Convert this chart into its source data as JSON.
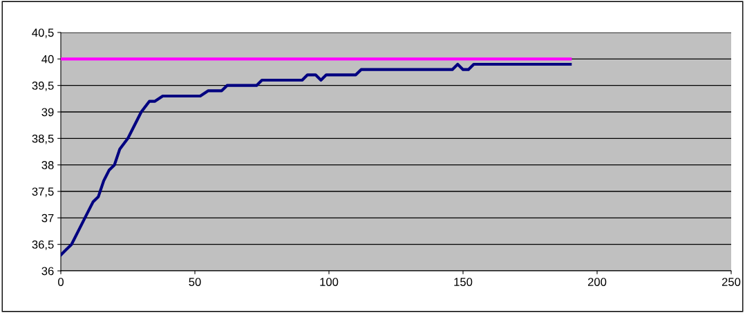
{
  "chart_data": {
    "type": "line",
    "xlim": [
      0,
      250
    ],
    "xticks": [
      0,
      50,
      100,
      150,
      200,
      250
    ],
    "ylim": [
      36,
      40.5
    ],
    "yticks": [
      {
        "value": 36,
        "label": "36"
      },
      {
        "value": 36.5,
        "label": "36,5"
      },
      {
        "value": 37,
        "label": "37"
      },
      {
        "value": 37.5,
        "label": "37,5"
      },
      {
        "value": 38,
        "label": "38"
      },
      {
        "value": 38.5,
        "label": "38,5"
      },
      {
        "value": 39,
        "label": "39"
      },
      {
        "value": 39.5,
        "label": "39,5"
      },
      {
        "value": 40,
        "label": "40"
      },
      {
        "value": 40.5,
        "label": "40,5"
      }
    ],
    "grid": "y",
    "legend": false,
    "marker": "none",
    "line_style": "solid",
    "series": [
      {
        "color": "#000080",
        "x": [
          0,
          2,
          4,
          5,
          7,
          10,
          12,
          14,
          16,
          18,
          20,
          22,
          25,
          27,
          30,
          33,
          35,
          38,
          52,
          55,
          60,
          62,
          73,
          75,
          90,
          92,
          95,
          97,
          99,
          110,
          112,
          146,
          148,
          150,
          152,
          154,
          190
        ],
        "values": [
          36.3,
          36.4,
          36.5,
          36.6,
          36.8,
          37.1,
          37.3,
          37.4,
          37.7,
          37.9,
          38.0,
          38.3,
          38.5,
          38.7,
          39.0,
          39.2,
          39.2,
          39.3,
          39.3,
          39.4,
          39.4,
          39.5,
          39.5,
          39.6,
          39.6,
          39.7,
          39.7,
          39.6,
          39.7,
          39.7,
          39.8,
          39.8,
          39.9,
          39.8,
          39.8,
          39.9,
          39.9
        ]
      },
      {
        "color": "#ff00ff",
        "x": [
          0,
          190
        ],
        "values": [
          40,
          40
        ]
      }
    ]
  }
}
